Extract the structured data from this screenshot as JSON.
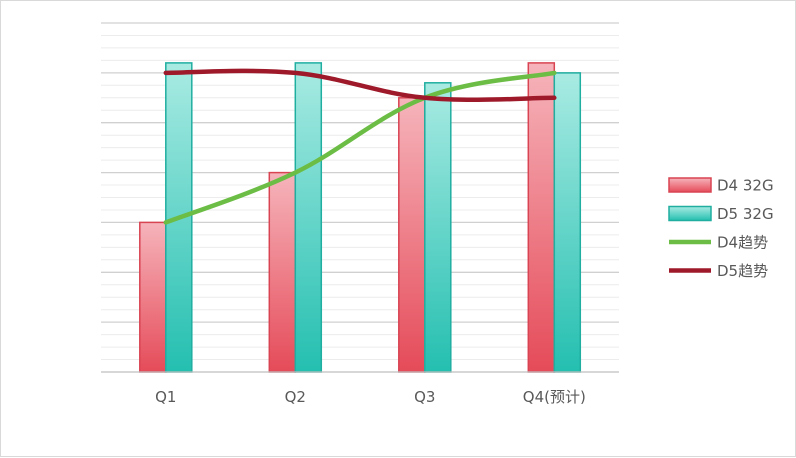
{
  "chart_data": {
    "type": "bar",
    "categories": [
      "Q1",
      "Q2",
      "Q3",
      "Q4(预计)"
    ],
    "ylim": [
      0,
      70
    ],
    "grid": true,
    "legend_position": "right",
    "series": [
      {
        "name": "D4 32G",
        "type": "bar",
        "color": "#e8505b",
        "values": [
          30,
          40,
          55,
          62
        ]
      },
      {
        "name": "D5 32G",
        "type": "bar",
        "color": "#2bbfb0",
        "values": [
          62,
          62,
          58,
          60
        ]
      }
    ],
    "lines": [
      {
        "name": "D4趋势",
        "type": "line",
        "color": "#6cbd45",
        "values": [
          30,
          40,
          55,
          60
        ]
      },
      {
        "name": "D5趋势",
        "type": "line",
        "color": "#9e1a2a",
        "values": [
          60,
          60,
          55,
          55
        ]
      }
    ]
  }
}
